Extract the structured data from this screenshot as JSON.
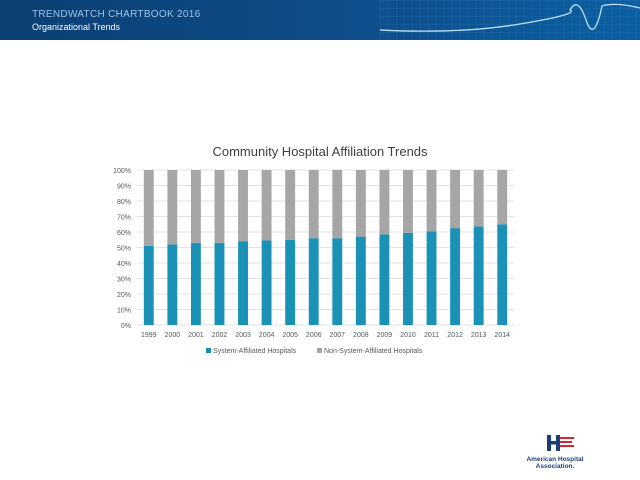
{
  "header": {
    "title": "TRENDWATCH  CHARTBOOK  2016",
    "subtitle": "Organizational Trends"
  },
  "logo": {
    "name_line1": "American Hospital",
    "name_line2": "Association."
  },
  "colors": {
    "header": "#0e4a86",
    "system": "#1a92b6",
    "non_system": "#a6a6a6"
  },
  "chart_data": {
    "type": "bar",
    "stacked": true,
    "title": "Community Hospital Affiliation Trends",
    "categories": [
      "1999",
      "2000",
      "2001",
      "2002",
      "2003",
      "2004",
      "2005",
      "2006",
      "2007",
      "2008",
      "2009",
      "2010",
      "2011",
      "2012",
      "2013",
      "2014"
    ],
    "series": [
      {
        "name": "System-Affiliated Hospitals",
        "color": "#1a92b6",
        "values": [
          51,
          52,
          53,
          53,
          54,
          54.5,
          55,
          56,
          56,
          57,
          58.5,
          59.5,
          60.5,
          62.5,
          63.5,
          65
        ]
      },
      {
        "name": "Non-System-Affiliated Hospitals",
        "color": "#a6a6a6",
        "values": [
          49,
          48,
          47,
          47,
          46,
          45.5,
          45,
          44,
          44,
          43,
          41.5,
          40.5,
          39.5,
          37.5,
          36.5,
          35
        ]
      }
    ],
    "y_ticks": [
      "0%",
      "10%",
      "20%",
      "30%",
      "40%",
      "50%",
      "60%",
      "70%",
      "80%",
      "90%",
      "100%"
    ],
    "ylim": [
      0,
      100
    ],
    "grid": true,
    "legend_position": "bottom"
  }
}
